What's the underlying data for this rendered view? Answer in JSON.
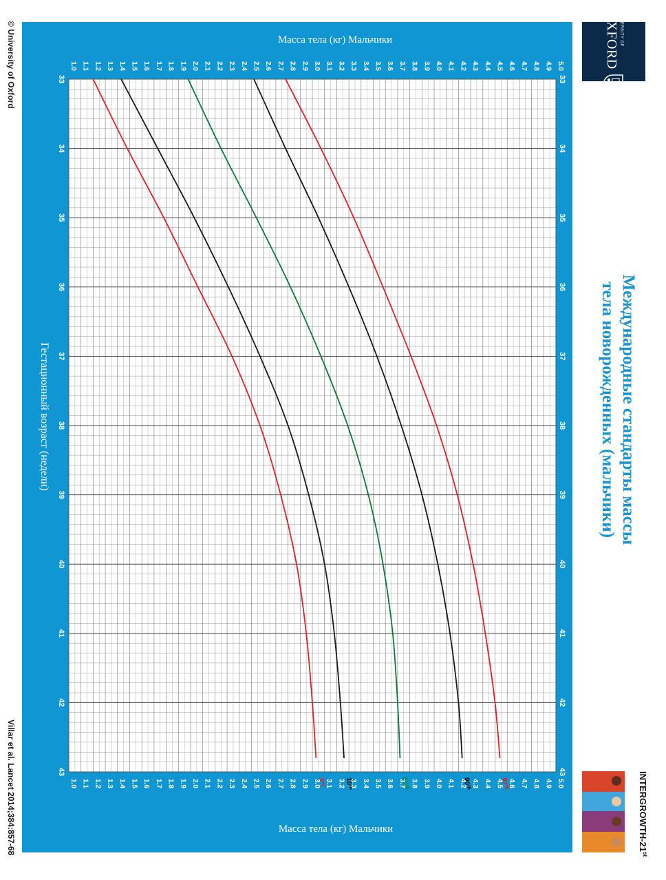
{
  "header": {
    "title_line1": "Международные стандарты массы",
    "title_line2": "тела  новорожденных (мальчики)"
  },
  "branding": {
    "oxford_small": "UNIVERSITY OF",
    "oxford_big": "OXFORD",
    "intergrowth": "INTERGROWTH-21",
    "intergrowth_sup": "st"
  },
  "footer": {
    "copyright": "© University of Oxford",
    "citation": "Villar et al. Lancet 2014;384:857-68"
  },
  "colors": {
    "panel": "#0f96d3",
    "grid": "#8a8a8a",
    "p97": "#e0212a",
    "p90": "#1a1a1a",
    "p50": "#0a7a3a",
    "p10": "#1a1a1a",
    "p3": "#e0212a",
    "label_p97": "#e0212a",
    "label_p90": "#000000",
    "label_p50": "#0a8a3a",
    "label_p10": "#000000",
    "label_p3": "#e0212a"
  },
  "chart_data": {
    "type": "line",
    "title": "Международные стандарты массы тела новорожденных (мальчики)",
    "xlabel": "Гестационный возраст (недели)",
    "ylabel": "Масса тела (кг) Мальчики",
    "ylabel_bottom": "Масса тела  (кг) Мальчики",
    "xlim": [
      33,
      43
    ],
    "ylim": [
      1.0,
      5.0
    ],
    "x_ticks": [
      "33",
      "34",
      "35",
      "36",
      "37",
      "38",
      "39",
      "40",
      "41",
      "42",
      "43"
    ],
    "y_ticks": [
      "1.0",
      "1.1",
      "1.2",
      "1.3",
      "1.4",
      "1.5",
      "1.6",
      "1.7",
      "1.8",
      "1.9",
      "2.0",
      "2.1",
      "2.2",
      "2.3",
      "2.4",
      "2.5",
      "2.6",
      "2.7",
      "2.8",
      "2.9",
      "3.0",
      "3.1",
      "3.2",
      "3.3",
      "3.4",
      "3.5",
      "3.6",
      "3.7",
      "3.8",
      "3.9",
      "4.0",
      "4.1",
      "4.2",
      "4.3",
      "4.4",
      "4.5",
      "4.6",
      "4.7",
      "4.8",
      "4.9",
      "5.0"
    ],
    "x": [
      33,
      34,
      35,
      36,
      37,
      38,
      39,
      40,
      41,
      42,
      42.8
    ],
    "series": [
      {
        "name": "97th",
        "label": "97",
        "sup": "th",
        "values": [
          2.78,
          3.07,
          3.34,
          3.58,
          3.81,
          4.02,
          4.19,
          4.32,
          4.42,
          4.5,
          4.54
        ]
      },
      {
        "name": "90th",
        "label": "90",
        "sup": "th",
        "values": [
          2.52,
          2.78,
          3.05,
          3.3,
          3.53,
          3.73,
          3.9,
          4.03,
          4.13,
          4.2,
          4.23
        ]
      },
      {
        "name": "50th",
        "label": "50",
        "sup": "th",
        "values": [
          1.98,
          2.25,
          2.54,
          2.82,
          3.07,
          3.29,
          3.46,
          3.58,
          3.66,
          3.7,
          3.72
        ]
      },
      {
        "name": "10th",
        "label": "10",
        "sup": "th",
        "values": [
          1.43,
          1.73,
          2.03,
          2.31,
          2.57,
          2.8,
          2.97,
          3.1,
          3.18,
          3.23,
          3.26
        ]
      },
      {
        "name": "3rd",
        "label": "3",
        "sup": "rd",
        "values": [
          1.2,
          1.48,
          1.78,
          2.06,
          2.34,
          2.57,
          2.74,
          2.87,
          2.95,
          3.0,
          3.03
        ]
      }
    ]
  }
}
